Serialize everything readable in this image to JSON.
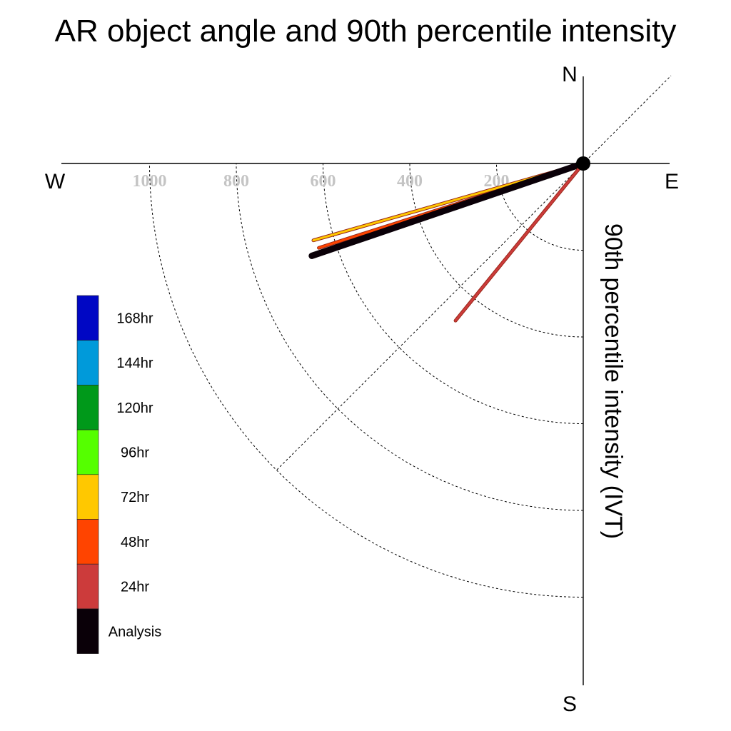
{
  "chart_data": {
    "type": "polar-vector",
    "title": "AR object angle and 90th percentile intensity",
    "ylabel": "90th percentile intensity (IVT)",
    "compass": {
      "north": "N",
      "south": "S",
      "east": "E",
      "west": "W"
    },
    "radial_ticks": [
      {
        "value": 200,
        "label": "200"
      },
      {
        "value": 400,
        "label": "400"
      },
      {
        "value": 600,
        "label": "600"
      },
      {
        "value": 800,
        "label": "800"
      },
      {
        "value": 1000,
        "label": "1000"
      }
    ],
    "series": [
      {
        "name": "72hr",
        "color": "#ffc800",
        "angle_deg": 195.9,
        "intensity": 647
      },
      {
        "name": "48hr",
        "color": "#ff4400",
        "angle_deg": 197.7,
        "intensity": 640
      },
      {
        "name": "Analysis",
        "color": "#0a0008",
        "angle_deg": 198.8,
        "intensity": 661
      },
      {
        "name": "24hr",
        "color": "#cc3b3b",
        "angle_deg": 230.9,
        "intensity": 467
      }
    ],
    "legend": [
      {
        "label": "168hr",
        "color": "#0007c4"
      },
      {
        "label": "144hr",
        "color": "#009ada"
      },
      {
        "label": "120hr",
        "color": "#00991a"
      },
      {
        "label": "96hr",
        "color": "#55ff00"
      },
      {
        "label": "72hr",
        "color": "#ffc800"
      },
      {
        "label": "48hr",
        "color": "#ff4400"
      },
      {
        "label": "24hr",
        "color": "#cc3b3b"
      },
      {
        "label": "Analysis",
        "color": "#0a0008"
      }
    ]
  }
}
